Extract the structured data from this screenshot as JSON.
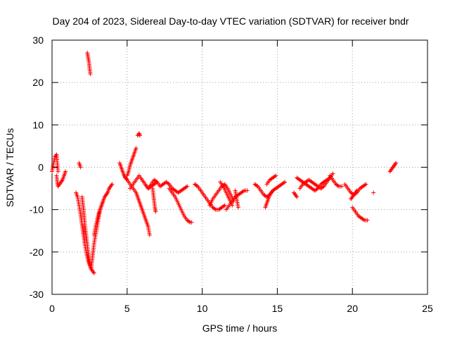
{
  "chart_data": {
    "type": "scatter",
    "title": "Day 204 of 2023, Sidereal Day-to-day VTEC variation (SDTVAR) for receiver bndr",
    "xlabel": "GPS time / hours",
    "ylabel": "SDTVAR / TECUs",
    "xlim": [
      0,
      25
    ],
    "ylim": [
      -30,
      30
    ],
    "xticks": [
      0,
      5,
      10,
      15,
      20,
      25
    ],
    "yticks": [
      -30,
      -20,
      -10,
      0,
      10,
      20,
      30
    ],
    "xtick_labels": [
      "0",
      "5",
      "10",
      "15",
      "20",
      "25"
    ],
    "ytick_labels": [
      "-30",
      "-20",
      "-10",
      "0",
      "10",
      "20",
      "30"
    ],
    "grid": true,
    "legend": "none",
    "marker": "+",
    "color": "#ff0000",
    "series": [
      {
        "x": [
          0.0,
          0.1,
          0.2,
          0.3,
          0.35,
          0.4
        ],
        "y": [
          -1.0,
          1.0,
          2.5,
          3.0,
          1.0,
          -1.0
        ]
      },
      {
        "x": [
          0.3,
          0.35,
          0.4,
          0.5,
          0.6,
          0.7,
          0.8,
          0.9
        ],
        "y": [
          -2.0,
          -3.5,
          -4.5,
          -4.0,
          -3.5,
          -3.0,
          -2.0,
          -1.0
        ]
      },
      {
        "x": [
          1.8,
          1.9
        ],
        "y": [
          1.0,
          0.0
        ]
      },
      {
        "x": [
          1.6,
          1.7,
          1.8,
          1.9,
          2.0,
          2.1,
          2.2,
          2.3,
          2.4,
          2.5,
          2.6,
          2.7,
          2.8
        ],
        "y": [
          -6.0,
          -7.0,
          -9.0,
          -11.0,
          -13.5,
          -16.0,
          -18.5,
          -20.5,
          -22.0,
          -23.0,
          -24.0,
          -24.5,
          -25.0
        ]
      },
      {
        "x": [
          2.0,
          2.1,
          2.2,
          2.3,
          2.4,
          2.5,
          2.6
        ],
        "y": [
          -7.0,
          -10.0,
          -14.0,
          -17.0,
          -20.0,
          -22.5,
          -24.0
        ]
      },
      {
        "x": [
          2.6,
          2.7,
          2.8,
          2.9,
          3.0,
          3.1,
          3.2,
          3.3,
          3.4
        ],
        "y": [
          -24.0,
          -21.0,
          -18.0,
          -16.0,
          -14.0,
          -12.0,
          -10.0,
          -9.0,
          -8.0
        ]
      },
      {
        "x": [
          2.8,
          2.9,
          3.0,
          3.1,
          3.2,
          3.3,
          3.4,
          3.5,
          3.6,
          3.7,
          3.8,
          3.9,
          4.0
        ],
        "y": [
          -16.0,
          -14.0,
          -12.5,
          -11.0,
          -10.0,
          -9.0,
          -8.0,
          -7.0,
          -6.5,
          -6.0,
          -5.0,
          -4.5,
          -4.0
        ]
      },
      {
        "x": [
          2.35,
          2.4,
          2.45,
          2.5,
          2.55
        ],
        "y": [
          27.0,
          26.0,
          25.0,
          23.5,
          22.0
        ]
      },
      {
        "x": [
          4.5,
          4.6,
          4.7,
          4.8,
          4.9,
          5.0
        ],
        "y": [
          1.0,
          0.0,
          -1.0,
          -2.0,
          -2.5,
          -3.0
        ]
      },
      {
        "x": [
          5.0,
          5.1,
          5.2,
          5.3,
          5.4,
          5.5,
          5.6
        ],
        "y": [
          -2.0,
          -1.0,
          0.5,
          1.5,
          2.5,
          3.5,
          4.5
        ]
      },
      {
        "x": [
          5.7,
          5.8,
          5.85
        ],
        "y": [
          7.5,
          8.0,
          7.5
        ]
      },
      {
        "x": [
          4.8,
          5.0,
          5.2,
          5.4,
          5.6,
          5.8,
          6.0,
          6.2,
          6.4,
          6.5
        ],
        "y": [
          -2.0,
          -3.0,
          -4.0,
          -5.0,
          -6.0,
          -8.0,
          -10.0,
          -12.0,
          -14.0,
          -16.0
        ]
      },
      {
        "x": [
          5.2,
          5.4,
          5.6,
          5.8,
          6.0,
          6.2,
          6.4,
          6.6,
          6.8,
          7.0
        ],
        "y": [
          -5.0,
          -4.0,
          -3.0,
          -2.0,
          -3.0,
          -4.0,
          -5.0,
          -4.5,
          -4.0,
          -3.5
        ]
      },
      {
        "x": [
          6.0,
          6.2,
          6.4,
          6.6,
          6.8,
          7.0,
          7.2,
          7.4,
          7.6,
          7.8,
          8.0
        ],
        "y": [
          -3.0,
          -4.0,
          -5.0,
          -4.0,
          -3.0,
          -3.5,
          -4.5,
          -4.0,
          -3.5,
          -4.0,
          -5.0
        ]
      },
      {
        "x": [
          6.7,
          6.75,
          6.8,
          6.85,
          6.9
        ],
        "y": [
          -5.0,
          -6.5,
          -8.0,
          -9.5,
          -10.5
        ]
      },
      {
        "x": [
          7.8,
          8.0,
          8.2,
          8.4,
          8.6,
          8.8,
          9.0,
          9.2,
          9.3
        ],
        "y": [
          -5.0,
          -6.0,
          -7.0,
          -8.5,
          -10.0,
          -11.5,
          -12.5,
          -13.0,
          -13.0
        ]
      },
      {
        "x": [
          8.0,
          8.2,
          8.4,
          8.6,
          8.8,
          9.0
        ],
        "y": [
          -5.0,
          -5.5,
          -6.0,
          -5.5,
          -5.0,
          -4.5
        ]
      },
      {
        "x": [
          9.5,
          9.7,
          9.9,
          10.1,
          10.3,
          10.5,
          10.7,
          10.9,
          11.1,
          11.3,
          11.5
        ],
        "y": [
          -4.0,
          -4.5,
          -5.5,
          -6.5,
          -7.5,
          -8.5,
          -9.5,
          -10.0,
          -10.0,
          -9.5,
          -9.0
        ]
      },
      {
        "x": [
          10.5,
          10.7,
          10.9,
          11.1,
          11.3,
          11.5,
          11.7,
          11.9,
          12.1
        ],
        "y": [
          -9.0,
          -7.5,
          -6.5,
          -5.5,
          -4.5,
          -4.0,
          -5.0,
          -6.5,
          -8.0
        ]
      },
      {
        "x": [
          11.6,
          11.8,
          12.0,
          12.2,
          12.4,
          12.6,
          12.8,
          13.0
        ],
        "y": [
          -10.0,
          -9.0,
          -8.0,
          -7.0,
          -6.5,
          -6.0,
          -5.5,
          -5.5
        ]
      },
      {
        "x": [
          11.2,
          11.4,
          11.6,
          11.8,
          12.0
        ],
        "y": [
          -3.5,
          -4.5,
          -6.0,
          -7.5,
          -9.0
        ]
      },
      {
        "x": [
          12.2,
          12.3,
          12.4
        ],
        "y": [
          -5.5,
          -7.5,
          -9.5
        ]
      },
      {
        "x": [
          13.5,
          13.7,
          13.9,
          14.1,
          14.3,
          14.5,
          14.7,
          14.9,
          15.1,
          15.3,
          15.5
        ],
        "y": [
          -4.0,
          -4.5,
          -5.5,
          -6.5,
          -7.0,
          -6.5,
          -5.5,
          -5.0,
          -4.5,
          -4.0,
          -3.5
        ]
      },
      {
        "x": [
          14.3,
          14.5,
          14.7,
          14.9
        ],
        "y": [
          -4.0,
          -3.0,
          -2.5,
          -2.0
        ]
      },
      {
        "x": [
          14.2,
          14.3,
          14.4,
          14.5,
          14.6,
          14.7
        ],
        "y": [
          -9.5,
          -8.5,
          -7.5,
          -6.5,
          -6.0,
          -5.5
        ]
      },
      {
        "x": [
          16.1,
          16.2,
          16.3
        ],
        "y": [
          -6.0,
          -6.5,
          -7.0
        ]
      },
      {
        "x": [
          16.3,
          16.5,
          16.7,
          16.9,
          17.1,
          17.3,
          17.5,
          17.7,
          17.9,
          18.1,
          18.3,
          18.5
        ],
        "y": [
          -2.5,
          -3.0,
          -3.5,
          -4.0,
          -4.5,
          -5.0,
          -5.5,
          -5.0,
          -4.0,
          -3.5,
          -3.0,
          -2.5
        ]
      },
      {
        "x": [
          16.5,
          16.7,
          16.9,
          17.1,
          17.3,
          17.5,
          17.7,
          17.9,
          18.1,
          18.3,
          18.5,
          18.7
        ],
        "y": [
          -5.0,
          -4.0,
          -3.5,
          -3.0,
          -3.5,
          -4.0,
          -4.5,
          -5.0,
          -4.5,
          -3.5,
          -2.5,
          -1.5
        ]
      },
      {
        "x": [
          18.5,
          18.7,
          18.9,
          19.1,
          19.3
        ],
        "y": [
          -2.0,
          -3.0,
          -4.0,
          -4.5,
          -4.5
        ]
      },
      {
        "x": [
          19.5,
          19.7,
          19.9,
          20.1,
          20.3,
          20.5,
          20.7,
          20.9
        ],
        "y": [
          -4.0,
          -5.0,
          -6.0,
          -6.5,
          -6.0,
          -5.0,
          -4.5,
          -4.0
        ]
      },
      {
        "x": [
          19.9,
          20.0,
          20.1,
          20.2,
          20.3
        ],
        "y": [
          -7.5,
          -7.0,
          -6.5,
          -6.0,
          -5.5
        ]
      },
      {
        "x": [
          20.0,
          20.2,
          20.4,
          20.6,
          20.8,
          21.0
        ],
        "y": [
          -9.5,
          -10.5,
          -11.5,
          -12.0,
          -12.5,
          -12.5
        ]
      },
      {
        "x": [
          21.4
        ],
        "y": [
          -6.0
        ]
      },
      {
        "x": [
          22.5,
          22.6,
          22.7,
          22.8,
          22.9
        ],
        "y": [
          -1.0,
          -0.5,
          0.0,
          0.5,
          1.0
        ]
      }
    ]
  }
}
